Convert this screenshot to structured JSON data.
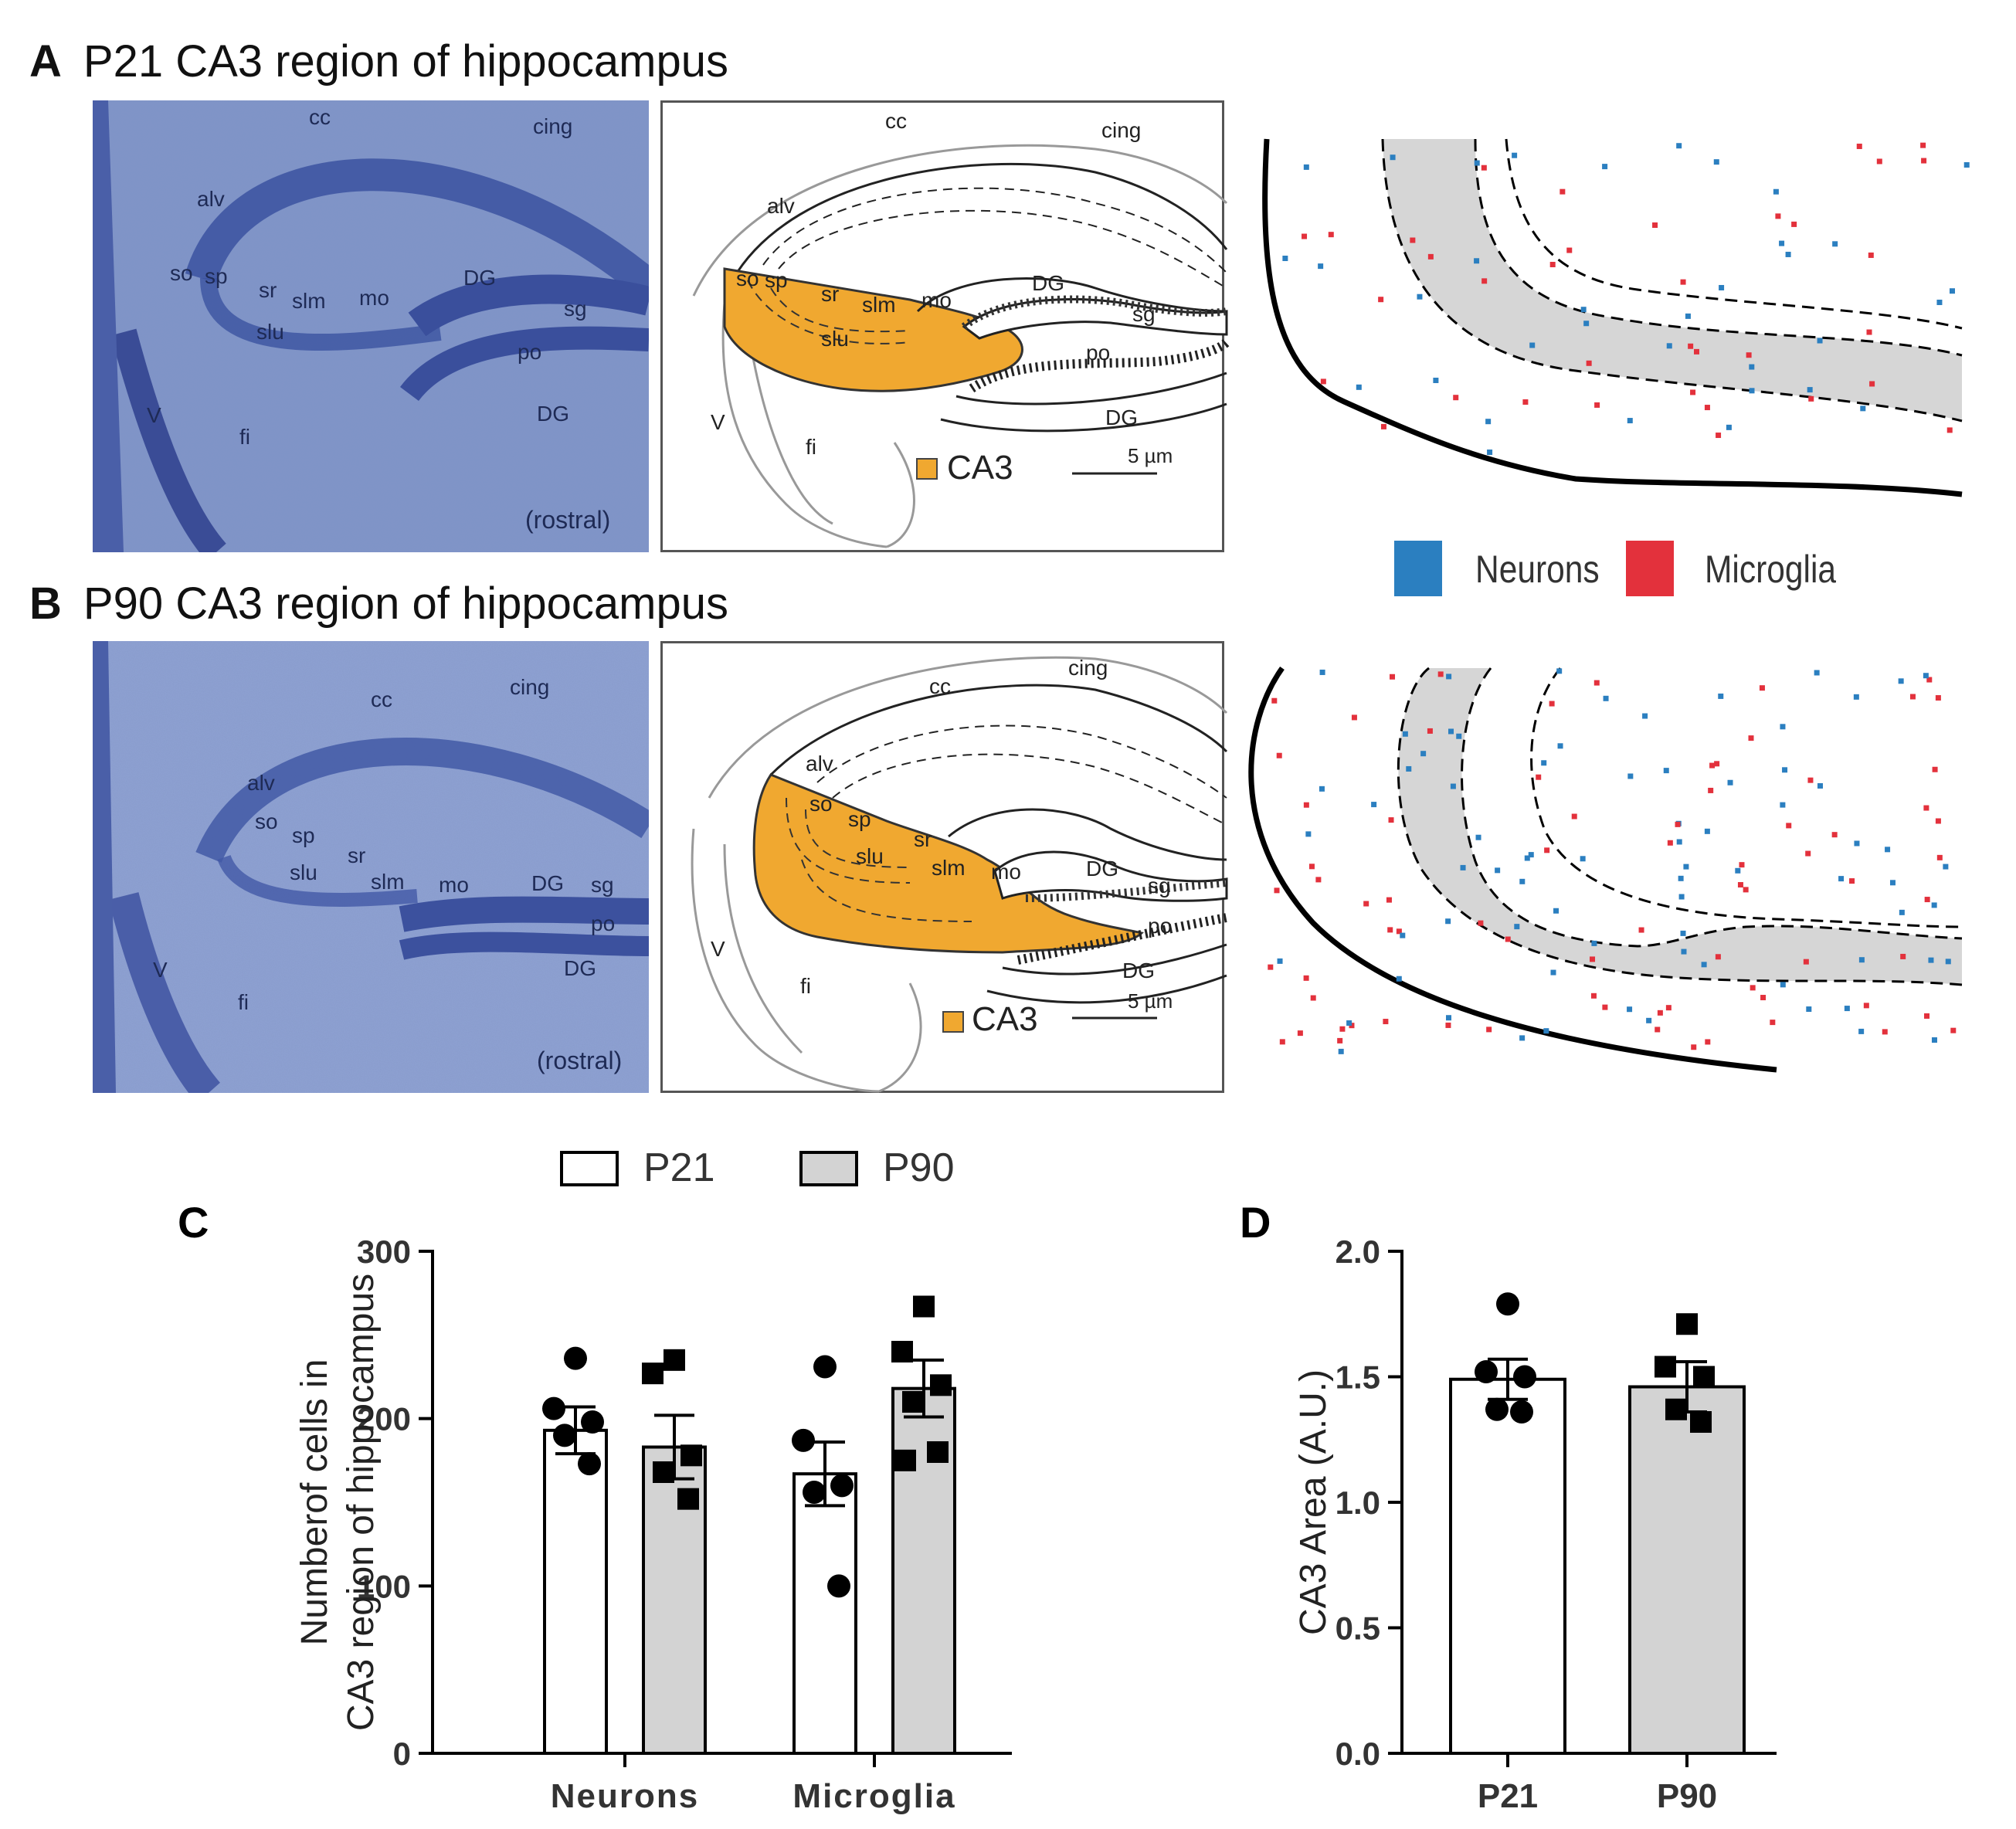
{
  "panels": {
    "A": {
      "letter": "A",
      "title": "P21 CA3 region of hippocampus"
    },
    "B": {
      "letter": "B",
      "title": "P90 CA3 region of hippocampus"
    },
    "C": {
      "letter": "C"
    },
    "D": {
      "letter": "D"
    }
  },
  "micrograph_labels_A": [
    "cc",
    "cing",
    "alv",
    "so",
    "sp",
    "sr",
    "slm",
    "mo",
    "DG",
    "sg",
    "slu",
    "po",
    "DG",
    "V",
    "fi",
    "(rostral)"
  ],
  "micrograph_labels_B": [
    "cc",
    "cing",
    "alv",
    "so",
    "sp",
    "sr",
    "slu",
    "slm",
    "mo",
    "DG",
    "sg",
    "po",
    "DG",
    "V",
    "fi",
    "(rostral)"
  ],
  "diagram_labels_A": [
    "cc",
    "cing",
    "alv",
    "so",
    "sp",
    "sr",
    "slm",
    "mo",
    "DG",
    "sg",
    "slu",
    "po",
    "DG",
    "V",
    "fi"
  ],
  "diagram_labels_B": [
    "cc",
    "cing",
    "alv",
    "so",
    "sp",
    "sr",
    "slu",
    "slm",
    "mo",
    "DG",
    "sg",
    "po",
    "DG",
    "V",
    "fi"
  ],
  "ca3_legend": "CA3",
  "scale_bar": "5 µm",
  "cell_legend": {
    "neurons": "Neurons",
    "microglia": "Microglia",
    "neuron_color": "#2b7fc0",
    "microglia_color": "#e3313c"
  },
  "colors": {
    "ca3": "#f0a830",
    "micrograph": "#5d74b4",
    "gray_band": "#d6d6d6"
  },
  "chart_data": [
    {
      "type": "bar",
      "panel": "C",
      "categories": [
        "Neurons",
        "Microglia"
      ],
      "series": [
        {
          "name": "P21",
          "values": [
            193,
            167
          ],
          "sem": [
            14,
            19
          ],
          "points": [
            [
              236,
              206,
              198,
              190,
              173
            ],
            [
              231,
              187,
              160,
              156,
              100
            ]
          ],
          "marker": "circle",
          "fill": "#ffffff"
        },
        {
          "name": "P90",
          "values": [
            183,
            218
          ],
          "sem": [
            19,
            17
          ],
          "points": [
            [
              235,
              227,
              178,
              168,
              152
            ],
            [
              267,
              240,
              220,
              210,
              180,
              175
            ]
          ],
          "marker": "square",
          "fill": "#d3d3d3"
        }
      ],
      "ylabel_line1": "Numberof cells in",
      "ylabel_line2": "CA3 region of hippocampus",
      "ylim": [
        0,
        300
      ],
      "yticks": [
        "0",
        "100",
        "200",
        "300"
      ],
      "legend": [
        "P21",
        "P90"
      ]
    },
    {
      "type": "bar",
      "panel": "D",
      "categories": [
        "P21",
        "P90"
      ],
      "values": [
        1.49,
        1.46
      ],
      "sem": [
        0.08,
        0.1
      ],
      "points": [
        [
          1.79,
          1.52,
          1.5,
          1.37,
          1.36
        ],
        [
          1.71,
          1.54,
          1.5,
          1.37,
          1.32
        ]
      ],
      "markers": [
        "circle",
        "square"
      ],
      "fills": [
        "#ffffff",
        "#d3d3d3"
      ],
      "ylabel": "CA3 Area  (A.U.)",
      "ylim": [
        0,
        2.0
      ],
      "yticks": [
        "0.0",
        "0.5",
        "1.0",
        "1.5",
        "2.0"
      ]
    }
  ]
}
